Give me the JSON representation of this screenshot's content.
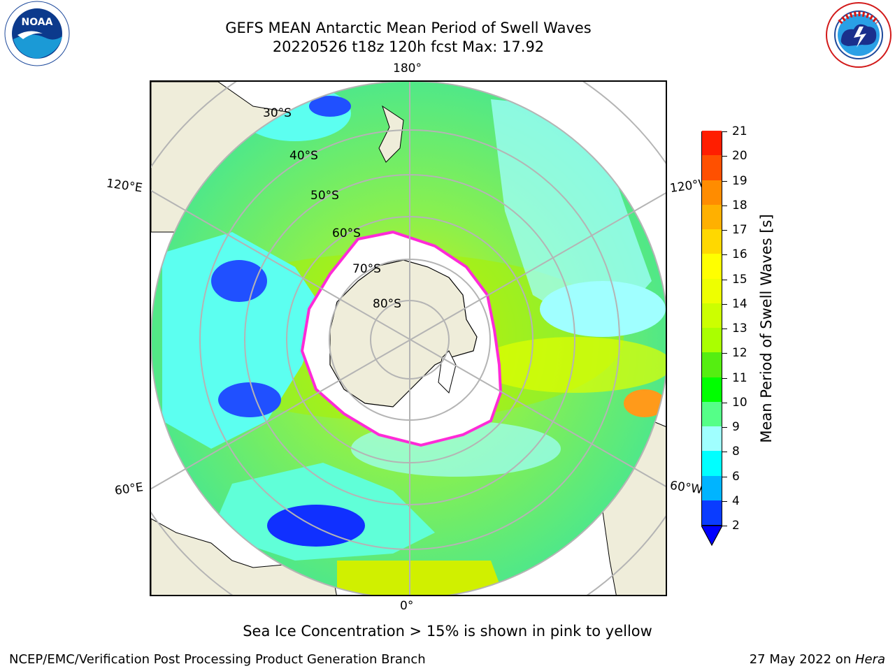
{
  "title": {
    "line1": "GEFS MEAN Antarctic Mean Period of Swell Waves",
    "line2": "20220526 t18z 120h fcst   Max: 17.92"
  },
  "logos": {
    "left": {
      "icon": "noaa-logo-icon",
      "text": "NOAA",
      "ring_text": "NATIONAL OCEANIC AND ATMOSPHERIC ADMINISTRATION · U.S. DEPARTMENT OF COMMERCE"
    },
    "right": {
      "icon": "nws-logo-icon",
      "ring_text": "NATIONAL WEATHER SERVICE"
    }
  },
  "map": {
    "projection": "south-polar-stereographic",
    "longitude_labels": {
      "top": "180°",
      "left_upper": "120°E",
      "right_upper": "120°W",
      "left_lower": "60°E",
      "right_lower": "60°W",
      "bottom": "0°"
    },
    "latitude_labels": [
      "30°S",
      "40°S",
      "50°S",
      "60°S",
      "70°S",
      "80°S"
    ],
    "colors": {
      "land": "#efedda",
      "ice": "#ffffff",
      "grid": "#b4b4b4",
      "ice_edge": "#ff2bd7"
    }
  },
  "colorbar": {
    "label": "Mean Period of Swell Waves [s]",
    "ticks": [
      "2",
      "4",
      "6",
      "8",
      "9",
      "10",
      "11",
      "12",
      "13",
      "14",
      "15",
      "16",
      "17",
      "18",
      "19",
      "20",
      "21"
    ],
    "colors": [
      "#0a3cff",
      "#00b4ff",
      "#00ffff",
      "#a0ffff",
      "#55ff88",
      "#00ff00",
      "#55ee11",
      "#aaff00",
      "#ccff00",
      "#eeff00",
      "#ffff00",
      "#ffd800",
      "#ffb000",
      "#ff8c00",
      "#ff5000",
      "#ff1e00"
    ],
    "under_color": "#0000ff"
  },
  "footnote": "Sea Ice Concentration > 15% is shown in pink to yellow",
  "credits": {
    "left": "NCEP/EMC/Verification Post Processing Product Generation Branch",
    "right_prefix": "27 May 2022 on ",
    "right_host": "Hera"
  }
}
